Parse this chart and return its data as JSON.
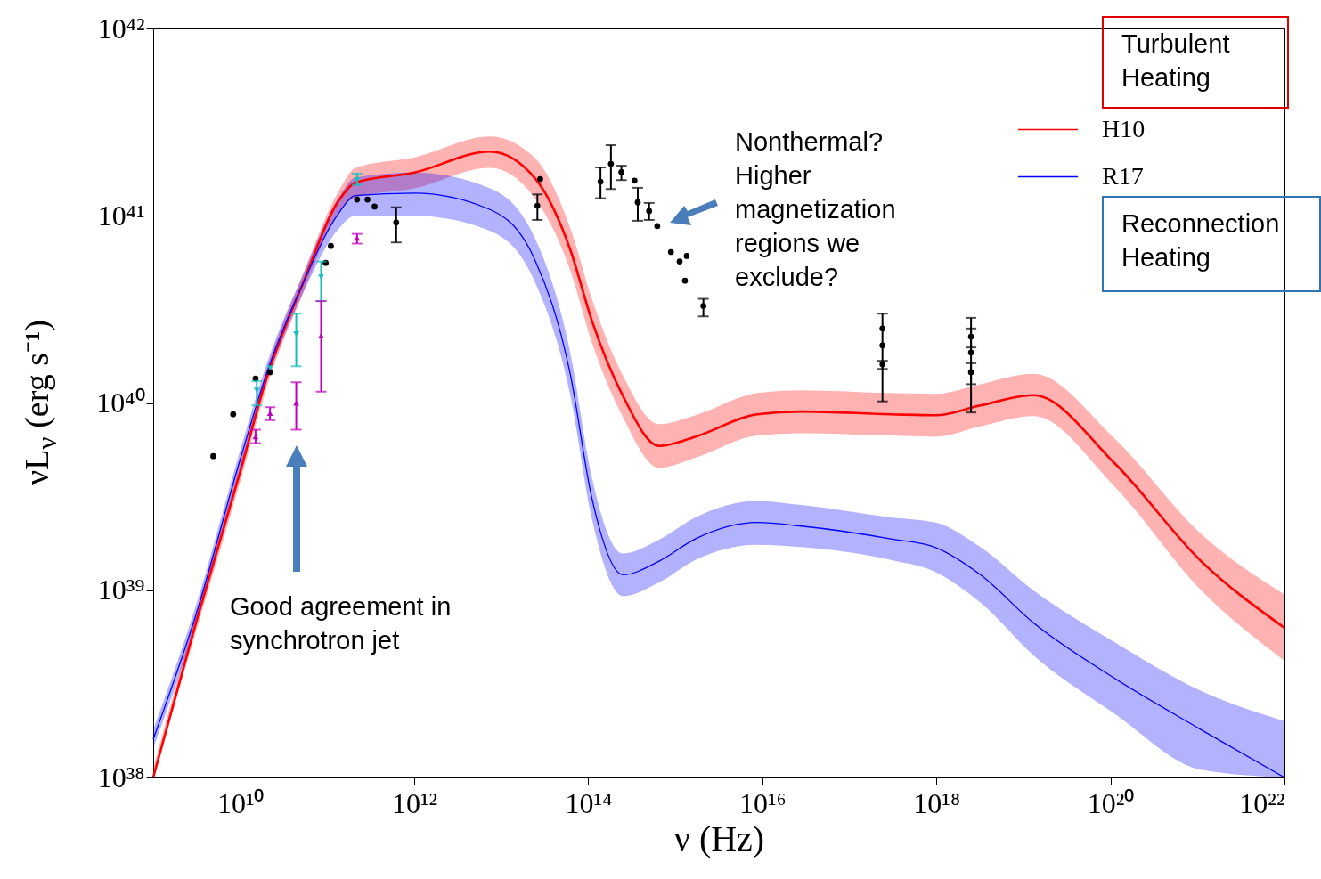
{
  "chart_data": {
    "type": "line",
    "xlabel": "ν (Hz)",
    "ylabel": "νL$_{ν}$ (erg s⁻¹)",
    "log": "xy",
    "legend": "top right",
    "xlim": [
      1000000000.0,
      1e+22
    ],
    "ylim": [
      1e+38,
      1e+42
    ],
    "xticks": [
      {
        "value": 10000000000.0,
        "label": "10¹⁰"
      },
      {
        "value": 1000000000000.0,
        "label": "10¹²"
      },
      {
        "value": 100000000000000.0,
        "label": "10¹⁴"
      },
      {
        "value": 1e+16,
        "label": "10¹⁶"
      },
      {
        "value": 1e+18,
        "label": "10¹⁸"
      },
      {
        "value": 1e+20,
        "label": "10²⁰"
      },
      {
        "value": 1e+22,
        "label": "10²²"
      }
    ],
    "yticks": [
      {
        "value": 1e+38,
        "label": "10³⁸"
      },
      {
        "value": 1e+39,
        "label": "10³⁹"
      },
      {
        "value": 1e+40,
        "label": "10⁴⁰"
      },
      {
        "value": 1e+41,
        "label": "10⁴¹"
      },
      {
        "value": 1e+42,
        "label": "10⁴²"
      }
    ],
    "annotations": [
      "Turbulent Heating",
      "Reconnection Heating",
      "Nonthermal? Higher magnetization regions we exclude?",
      "Good agreement in synchrotron jet"
    ],
    "series": [
      {
        "name": "H10",
        "type": "line",
        "color": "#ff0000",
        "x": [
          1000000000.0,
          3100000000.0,
          10000000000.0,
          20000000000.0,
          52000000000.0,
          135000000000.0,
          210000000000.0,
          1000000000000.0,
          7400000000000.0,
          24000000000000.0,
          62000000000000.0,
          110000000000000.0,
          250000000000000.0,
          650000000000000.0,
          1700000000000000.0,
          8700000000000000.0,
          2.8e+16,
          3e+17,
          9.8e+17,
          3.2e+18,
          1.3e+19,
          1.1e+20,
          1.1e+21,
          1e+22
        ],
        "values": [
          1e+38,
          6.7e+38,
          4.3e+39,
          1.35e+40,
          4.3e+40,
          1.2e+41,
          1.5e+41,
          1.7e+41,
          2.2e+41,
          1.6e+41,
          6.6e+40,
          2.75e+40,
          1.09e+40,
          5.9e+39,
          6.6e+39,
          8.7e+39,
          9e+39,
          8.7e+39,
          8.6e+39,
          9.7e+39,
          1.1e+40,
          4.8e+39,
          1.43e+39,
          6.3e+38
        ],
        "lower": [
          1e+38,
          6e+38,
          3.8e+39,
          1.2e+40,
          3.8e+40,
          1.05e+41,
          1.25e+41,
          1.4e+41,
          1.8e+41,
          1.25e+41,
          5.1e+40,
          2.1e+40,
          8.4e+39,
          4.5e+39,
          5.1e+39,
          6.7e+39,
          6.9e+39,
          6.7e+39,
          6.6e+39,
          7.5e+39,
          8.5e+39,
          3.6e+39,
          1e+39,
          4.2e+38
        ],
        "upper": [
          1.12e+38,
          7.5e+38,
          4.8e+39,
          1.5e+40,
          4.8e+40,
          1.35e+41,
          1.8e+41,
          2.05e+41,
          2.65e+41,
          2.05e+41,
          8.6e+40,
          3.6e+40,
          1.4e+40,
          7.7e+39,
          8.6e+39,
          1.13e+40,
          1.17e+40,
          1.13e+40,
          1.12e+40,
          1.26e+40,
          1.43e+40,
          6.5e+39,
          2e+39,
          9.5e+38
        ]
      },
      {
        "name": "R17",
        "type": "line",
        "color": "#0000ff",
        "x": [
          1000000000.0,
          3100000000.0,
          10000000000.0,
          20000000000.0,
          52000000000.0,
          135000000000.0,
          210000000000.0,
          1000000000000.0,
          7400000000000.0,
          24000000000000.0,
          62000000000000.0,
          110000000000000.0,
          250000000000000.0,
          650000000000000.0,
          1700000000000000.0,
          8700000000000000.0,
          2.8e+16,
          3e+17,
          9.8e+17,
          3.2e+18,
          1.3e+19,
          1.1e+20,
          1.1e+21,
          1e+22
        ],
        "values": [
          1.6e+38,
          7.4e+38,
          5e+39,
          1.43e+40,
          4.3e+40,
          1.03e+41,
          1.28e+41,
          1.32e+41,
          1.08e+41,
          5.9e+40,
          1.43e+40,
          3.1e+39,
          1.21e+39,
          1.43e+39,
          1.88e+39,
          2.3e+39,
          2.2e+39,
          1.88e+39,
          1.69e+39,
          1.21e+39,
          6.7e+38,
          3.4e+38,
          1.8e+38,
          1e+38
        ],
        "lower": [
          1.43e+38,
          6.6e+38,
          4.5e+39,
          1.28e+40,
          3.8e+40,
          8.5e+40,
          1e+41,
          1e+41,
          8.3e+40,
          4.5e+40,
          1.1e+40,
          2.4e+39,
          9.3e+38,
          1.1e+39,
          1.45e+39,
          1.75e+39,
          1.7e+39,
          1.45e+39,
          1.25e+39,
          8.6e+38,
          4.5e+38,
          2.2e+38,
          1.1e+38,
          1e+38
        ],
        "upper": [
          1.8e+38,
          8.3e+38,
          5.6e+39,
          1.6e+40,
          4.8e+40,
          1.25e+41,
          1.6e+41,
          1.7e+41,
          1.4e+41,
          7.7e+40,
          1.86e+40,
          4e+39,
          1.57e+39,
          1.86e+39,
          2.45e+39,
          3e+39,
          2.85e+39,
          2.45e+39,
          2.3e+39,
          1.7e+39,
          1e+39,
          5.3e+38,
          2.9e+38,
          2e+38
        ]
      },
      {
        "type": "scatter",
        "color": "#000000",
        "marker": "circle",
        "x": [
          4900000000.0,
          8300000000.0,
          15000000000.0,
          22000000000.0,
          96000000000.0,
          110000000000.0,
          220000000000.0,
          290000000000.0,
          350000000000.0,
          620000000000.0,
          26000000000000.0,
          28000000000000.0,
          138000000000000.0,
          182000000000000.0,
          240000000000000.0,
          340000000000000.0,
          370000000000000.0,
          500000000000000.0,
          620000000000000.0,
          890000000000000.0,
          1120000000000000.0,
          1290000000000000.0,
          1350000000000000.0,
          2100000000000000.0,
          2.4e+17,
          2.4e+17,
          2.4e+17,
          2.5e+18,
          2.5e+18,
          2.5e+18
        ],
        "values": [
          5.2e+39,
          8.7e+39,
          1.35e+40,
          1.46e+40,
          5.6e+40,
          6.9e+40,
          1.22e+41,
          1.22e+41,
          1.12e+41,
          9.2e+40,
          1.13e+41,
          1.57e+41,
          1.52e+41,
          1.89e+41,
          1.71e+41,
          1.54e+41,
          1.18e+41,
          1.06e+41,
          8.8e+40,
          6.4e+40,
          5.7e+40,
          4.5e+40,
          6.1e+40,
          3.3e+40,
          2.5e+40,
          2.03e+40,
          1.61e+40,
          2.26e+40,
          1.86e+40,
          1.46e+40
        ],
        "errors": [
          null,
          null,
          null,
          null,
          null,
          null,
          null,
          null,
          null,
          [
            7.2e+40,
            1.11e+41
          ],
          [
            9.5e+40,
            1.3e+41
          ],
          null,
          [
            1.24e+41,
            1.81e+41
          ],
          [
            1.39e+41,
            2.38e+41
          ],
          [
            1.55e+41,
            1.85e+41
          ],
          null,
          [
            9.4e+40,
            1.41e+41
          ],
          [
            9.5e+40,
            1.17e+41
          ],
          null,
          null,
          null,
          null,
          null,
          [
            2.9e+40,
            3.6e+40
          ],
          null,
          [
            1.02e+40,
            3e+40
          ],
          [
            1.52e+40,
            1.68e+40
          ],
          [
            1.98e+40,
            2.5e+40
          ],
          [
            8.9e+39,
            2.85e+40
          ],
          [
            1.26e+40,
            1.63e+40
          ]
        ]
      },
      {
        "type": "scatter",
        "color": "#17bebb",
        "marker": "triangle-down",
        "x": [
          15500000000.0,
          22000000000.0,
          44000000000.0,
          85000000000.0,
          220000000000.0
        ],
        "values": [
          1.17e+40,
          1.54e+40,
          2.34e+40,
          4.7e+40,
          1.55e+41
        ],
        "errors": [
          [
            9.7e+39,
            1.31e+40
          ],
          null,
          [
            1.57e+40,
            3e+40
          ],
          [
            3.5e+40,
            5.7e+40
          ],
          [
            1.46e+41,
            1.68e+41
          ]
        ]
      },
      {
        "type": "scatter",
        "color": "#bf00bf",
        "marker": "triangle",
        "x": [
          15000000000.0,
          22000000000.0,
          44000000000.0,
          85000000000.0,
          220000000000.0
        ],
        "values": [
          6.6e+39,
          8.8e+39,
          1e+40,
          2.29e+40,
          7.6e+40
        ],
        "errors": [
          [
            6.1e+39,
            7.2e+39
          ],
          [
            8.1e+39,
            9.5e+39
          ],
          [
            7.2e+39,
            1.29e+40
          ],
          [
            1.15e+40,
            3.5e+40
          ],
          [
            7.1e+40,
            8e+40
          ]
        ]
      }
    ]
  }
}
